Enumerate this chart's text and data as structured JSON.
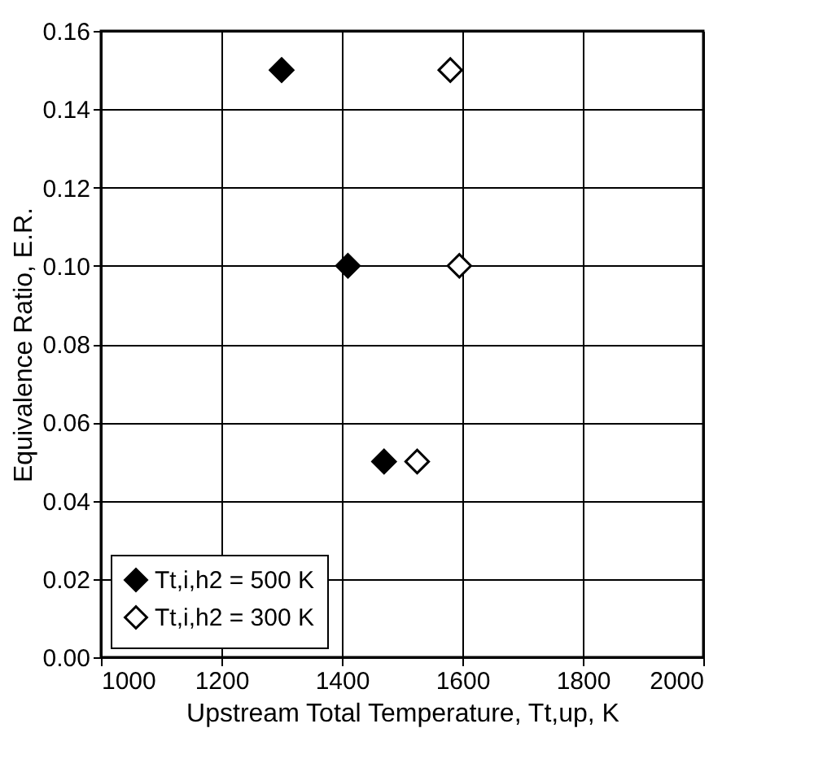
{
  "chart_data": {
    "type": "scatter",
    "xlabel": "Upstream Total Temperature, Tt,up, K",
    "ylabel": "Equivalence Ratio, E.R.",
    "series": [
      {
        "name": "Tt,i,h2 = 500 K",
        "color": "#000000",
        "x": [
          1300,
          1410,
          1470
        ],
        "values": [
          0.15,
          0.1,
          0.05
        ]
      },
      {
        "name": "Tt,i,h2 = 300 K",
        "color": "#000000",
        "x": [
          1580,
          1595,
          1525
        ],
        "values": [
          0.15,
          0.1,
          0.05
        ]
      }
    ],
    "xlim": [
      1000,
      2000
    ],
    "xticks": [
      1000,
      1200,
      1400,
      1600,
      1800,
      2000
    ],
    "ylim": [
      0,
      0.16
    ],
    "yticks": [
      {
        "value": 0,
        "label": "0.00"
      },
      {
        "value": 0.02,
        "label": "0.02"
      },
      {
        "value": 0.04,
        "label": "0.04"
      },
      {
        "value": 0.06,
        "label": "0.06"
      },
      {
        "value": 0.08,
        "label": "0.08"
      },
      {
        "value": 0.1,
        "label": "0.10"
      },
      {
        "value": 0.12,
        "label": "0.12"
      },
      {
        "value": 0.14,
        "label": "0.14"
      },
      {
        "value": 0.16,
        "label": "0.16"
      }
    ],
    "grid": true,
    "legend": "bottom left",
    "marker": "diamond"
  }
}
